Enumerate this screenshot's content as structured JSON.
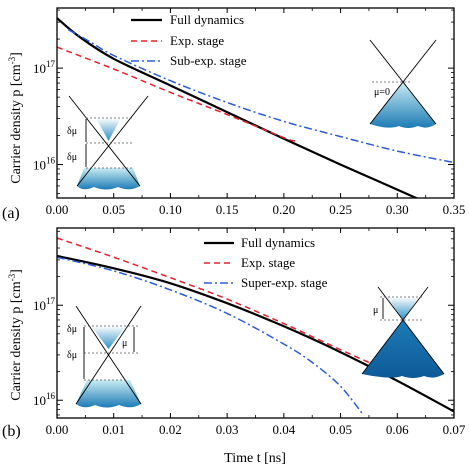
{
  "chart_data": [
    {
      "panel": "(a)",
      "type": "line",
      "xlabel": "",
      "ylabel": "Carrier density p [cm",
      "ylabel_sup": "-3",
      "ylabel_close": "]",
      "xlim": [
        0,
        0.35
      ],
      "ylim": [
        4500000000000000.0,
        4.2e+17
      ],
      "yscale": "log",
      "x_ticks": [
        0.0,
        0.05,
        0.1,
        0.15,
        0.2,
        0.25,
        0.3,
        0.35
      ],
      "x_tick_labels": [
        "0.00",
        "0.05",
        "0.10",
        "0.15",
        "0.20",
        "0.25",
        "0.30",
        "0.35"
      ],
      "y_major_ticks": [
        {
          "value": 1e+16,
          "mantissa": "10",
          "exp": "16"
        },
        {
          "value": 1e+17,
          "mantissa": "10",
          "exp": "17"
        }
      ],
      "legend_position": "top-center",
      "series": [
        {
          "name": "Full dynamics",
          "style": "solid",
          "color": "#000000",
          "x": [
            0,
            0.02,
            0.05,
            0.1,
            0.15,
            0.2,
            0.25,
            0.3,
            0.35
          ],
          "y": [
            3.3e+17,
            2.1e+17,
            1.25e+17,
            6.6e+16,
            3.5e+16,
            1.85e+16,
            1e+16,
            5500000000000000.0,
            3000000000000000.0
          ]
        },
        {
          "name": "Exp. stage",
          "style": "dashed",
          "color": "#e8202a",
          "x": [
            0,
            0.05,
            0.1,
            0.15,
            0.2,
            0.21
          ],
          "y": [
            1.65e+17,
            9.8e+16,
            5.6e+16,
            3.3e+16,
            1.9e+16,
            1.75e+16
          ]
        },
        {
          "name": "Sub-exp. stage",
          "style": "dashdot",
          "color": "#2a5bd7",
          "x": [
            0.01,
            0.03,
            0.05,
            0.1,
            0.15,
            0.2,
            0.25,
            0.3,
            0.35
          ],
          "y": [
            2.5e+17,
            1.85e+17,
            1.35e+17,
            7.4e+16,
            4.4e+16,
            2.8e+16,
            1.95e+16,
            1.38e+16,
            1.05e+16
          ]
        }
      ],
      "insets": [
        "δμ",
        "δμ",
        "μ=0"
      ]
    },
    {
      "panel": "(b)",
      "type": "line",
      "xlabel": "Time t [ns]",
      "ylabel": "Carrier density p [cm",
      "ylabel_sup": "-3",
      "ylabel_close": "]",
      "xlim": [
        0,
        0.07
      ],
      "ylim": [
        6500000000000000.0,
        6.5e+17
      ],
      "yscale": "log",
      "x_ticks": [
        0.0,
        0.01,
        0.02,
        0.03,
        0.04,
        0.05,
        0.06,
        0.07
      ],
      "x_tick_labels": [
        "0.00",
        "0.01",
        "0.02",
        "0.03",
        "0.04",
        "0.05",
        "0.06",
        "0.07"
      ],
      "y_major_ticks": [
        {
          "value": 1e+16,
          "mantissa": "10",
          "exp": "16"
        },
        {
          "value": 1e+17,
          "mantissa": "10",
          "exp": "17"
        }
      ],
      "legend_position": "top-right",
      "series": [
        {
          "name": "Full dynamics",
          "style": "solid",
          "color": "#000000",
          "x": [
            0,
            0.01,
            0.02,
            0.03,
            0.04,
            0.05,
            0.06,
            0.07
          ],
          "y": [
            3.3e+17,
            2.45e+17,
            1.7e+17,
            1.05e+17,
            6e+16,
            3.2e+16,
            1.6e+16,
            7600000000000000.0
          ]
        },
        {
          "name": "Exp. stage",
          "style": "dashed",
          "color": "#e8202a",
          "x": [
            0,
            0.01,
            0.02,
            0.03,
            0.04,
            0.05,
            0.056
          ],
          "y": [
            5.1e+17,
            3.2e+17,
            1.95e+17,
            1.16e+17,
            6.4e+16,
            3.4e+16,
            2.35e+16
          ]
        },
        {
          "name": "Super-exp. stage",
          "style": "dashdot",
          "color": "#2a5bd7",
          "x": [
            0,
            0.01,
            0.02,
            0.03,
            0.04,
            0.045,
            0.05,
            0.054
          ],
          "y": [
            3.2e+17,
            2.3e+17,
            1.45e+17,
            8.2e+16,
            3.9e+16,
            2.5e+16,
            1.4e+16,
            7000000000000000.0
          ]
        }
      ],
      "insets": [
        "δμ",
        "δμ",
        "μ",
        "μ"
      ]
    }
  ]
}
